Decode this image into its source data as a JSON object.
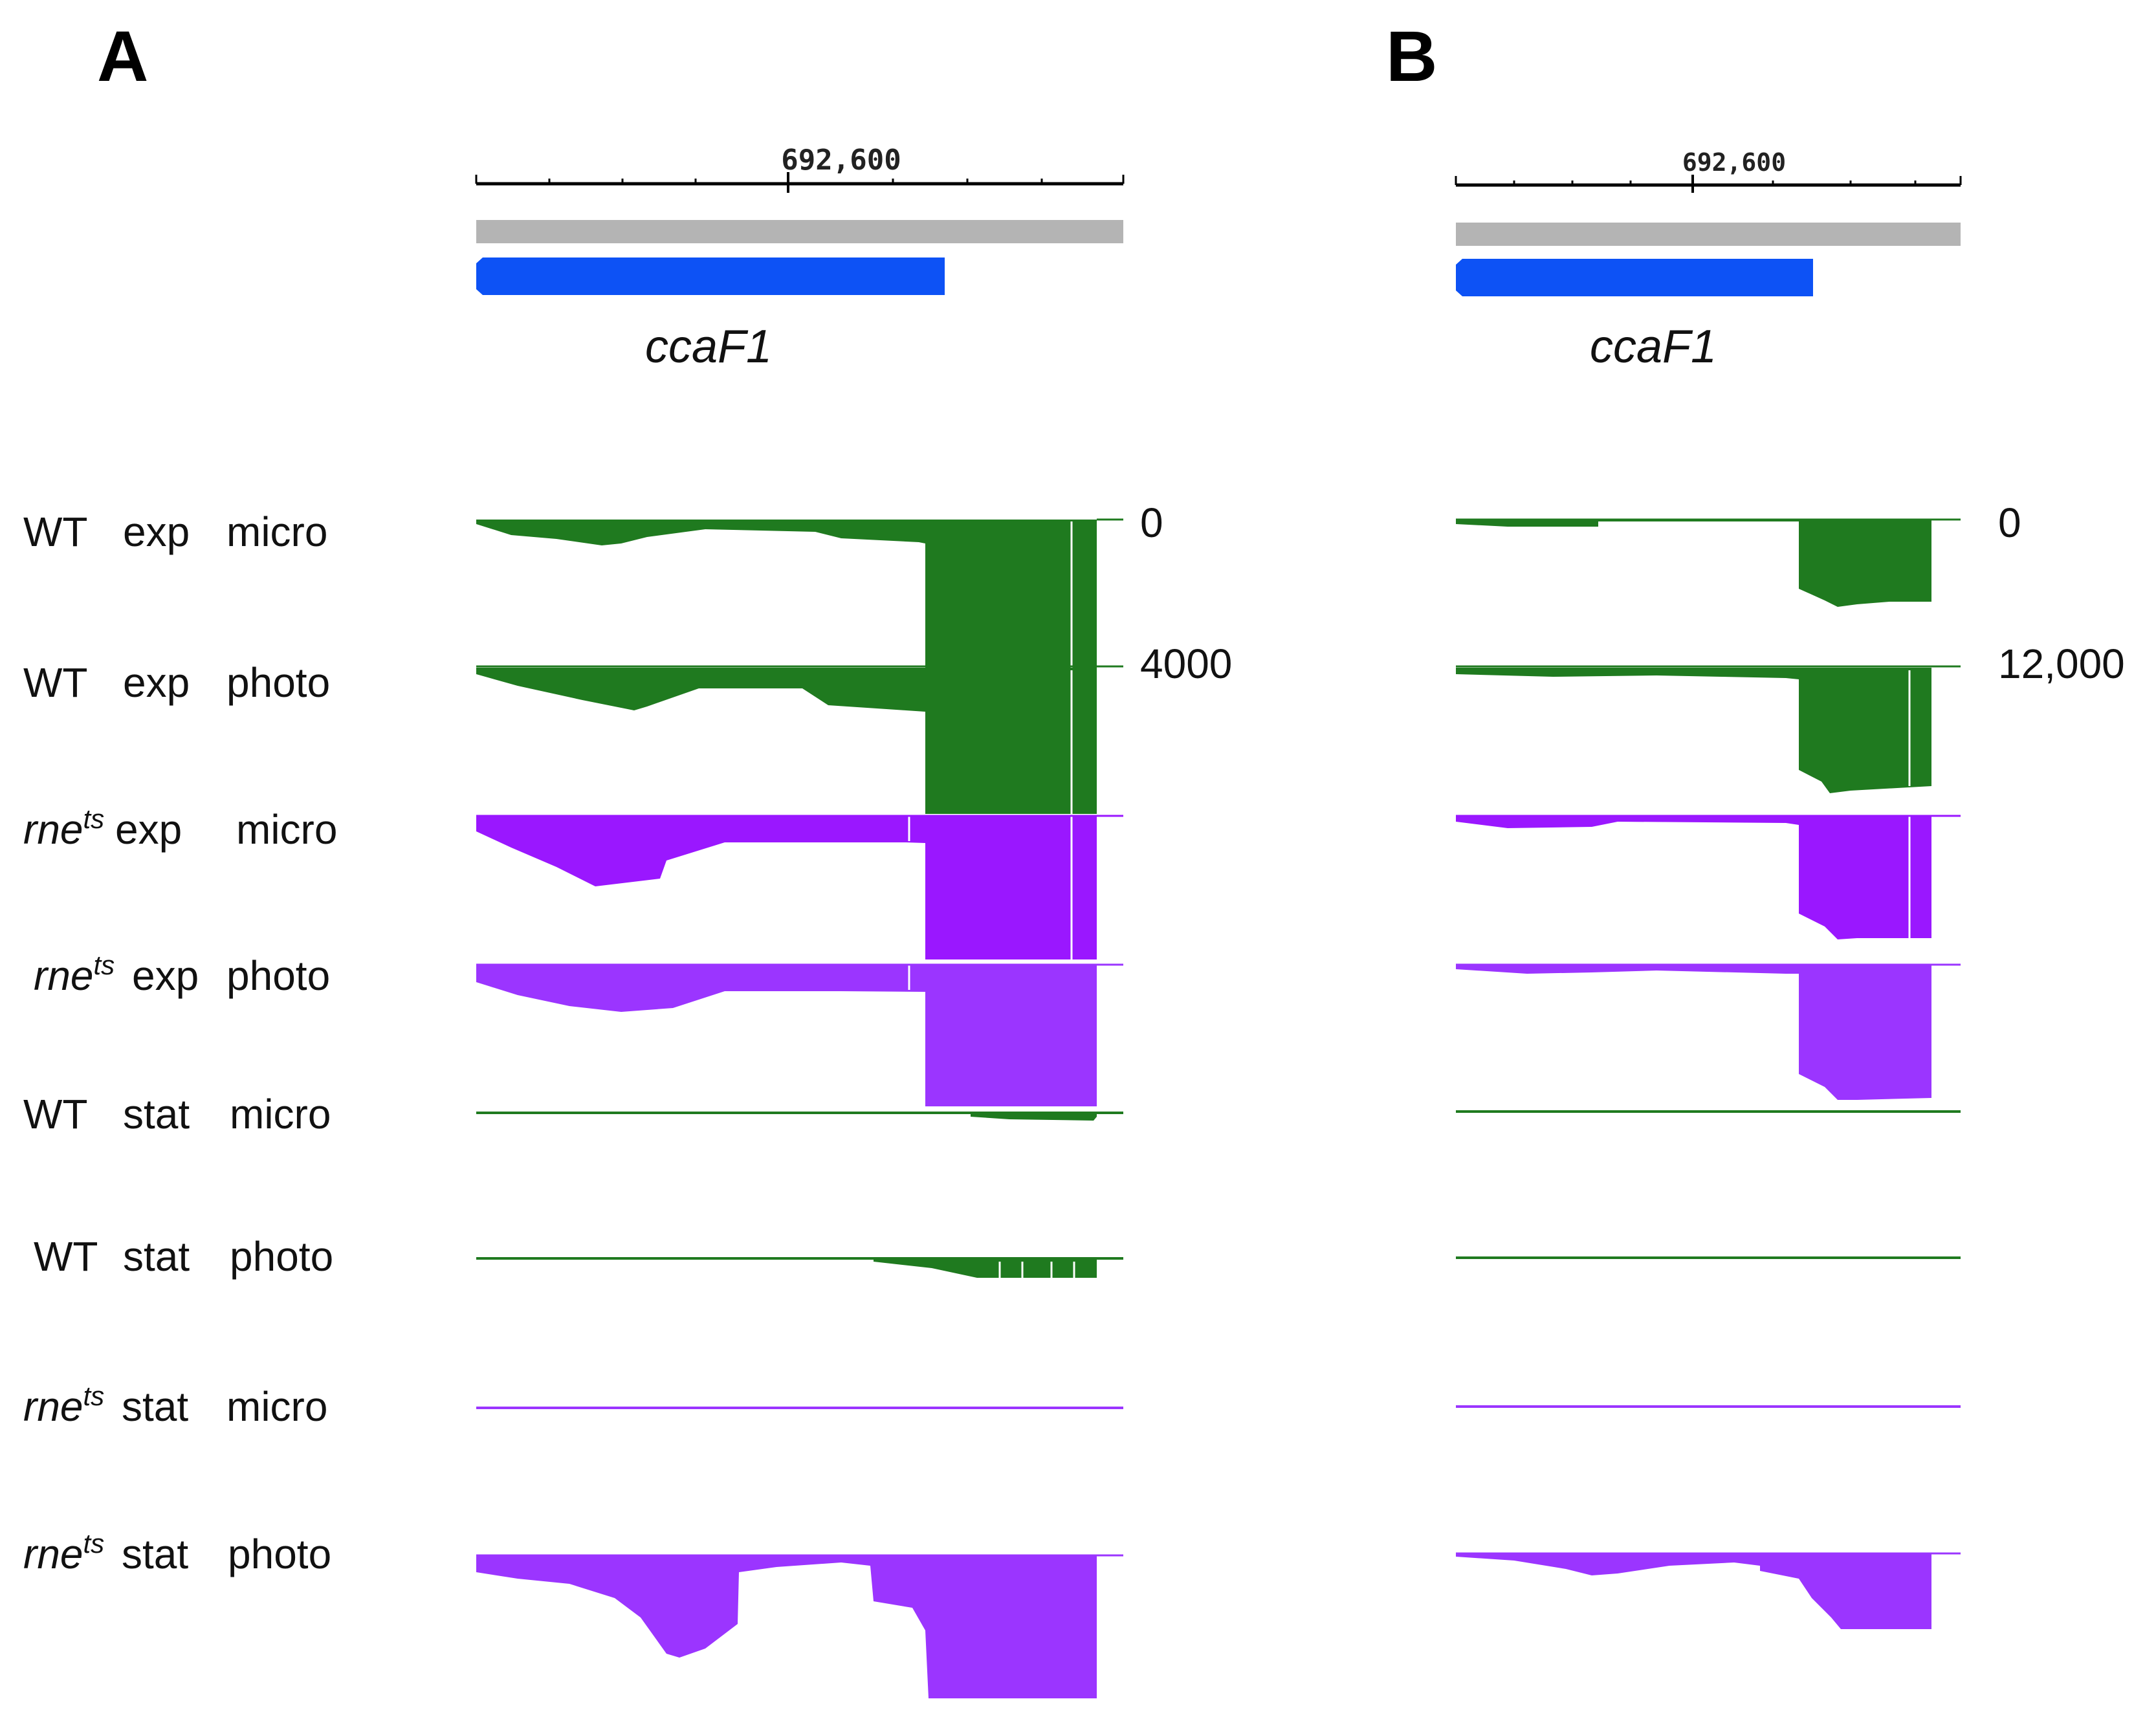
{
  "panels": [
    {
      "letter": "A",
      "coordinate": "692,600",
      "gene": "ccaF1",
      "scale_top": "0",
      "scale_bottom": "4000"
    },
    {
      "letter": "B",
      "coordinate": "692,600",
      "gene": "ccaF1",
      "scale_top": "0",
      "scale_bottom": "12,000"
    }
  ],
  "tracks": [
    {
      "prefix": "WT",
      "prefix_italic": false,
      "sup": "",
      "condition": "exp",
      "method": "micro",
      "color": "#1f7a1f"
    },
    {
      "prefix": "WT",
      "prefix_italic": false,
      "sup": "",
      "condition": "exp",
      "method": "photo",
      "color": "#1f7a1f"
    },
    {
      "prefix": "rne",
      "prefix_italic": true,
      "sup": "ts",
      "condition": "exp",
      "method": "micro",
      "color": "#9a17ff"
    },
    {
      "prefix": "rne",
      "prefix_italic": true,
      "sup": "ts",
      "condition": "exp",
      "method": "photo",
      "color": "#9b35ff"
    },
    {
      "prefix": "WT",
      "prefix_italic": false,
      "sup": "",
      "condition": "stat",
      "method": "micro",
      "color": "#1f7a1f"
    },
    {
      "prefix": "WT",
      "prefix_italic": false,
      "sup": "",
      "condition": "stat",
      "method": "photo",
      "color": "#1f7a1f"
    },
    {
      "prefix": "rne",
      "prefix_italic": true,
      "sup": "ts",
      "condition": "stat",
      "method": "micro",
      "color": "#9b35ff"
    },
    {
      "prefix": "rne",
      "prefix_italic": true,
      "sup": "ts",
      "condition": "stat",
      "method": "photo",
      "color": "#9b35ff"
    }
  ],
  "colors": {
    "gene_bar": "#0d52f5",
    "ref_bar": "#b4b4b4",
    "ruler": "#000000"
  }
}
